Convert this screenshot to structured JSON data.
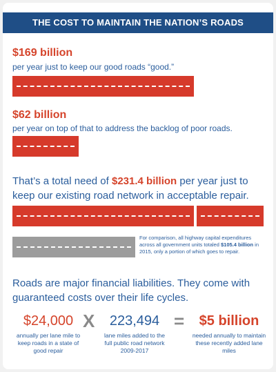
{
  "header": {
    "title": "THE COST TO MAINTAIN THE NATION’S ROADS"
  },
  "sections": [
    {
      "amount": "$169 billion",
      "description": "per year just to keep our good roads “good.”"
    },
    {
      "amount": "$62 billion",
      "description": "per year on top of that to address the backlog of poor roads."
    }
  ],
  "total": {
    "prefix": "That’s a total need of ",
    "amount": "$231.4 billion",
    "suffix": " per year just to keep our existing road network in acceptable repair."
  },
  "note": {
    "prefix": "For comparison, all highway capital expenditures across all government units totaled ",
    "amount": "$105.4 billion",
    "suffix": " in 2015, only a portion of which goes to repair."
  },
  "liabilities": "Roads are major financial liabilities. They come with guaranteed costs over their life cycles.",
  "equation": {
    "terms": [
      {
        "value": "$24,000",
        "caption": "annually per lane mile to keep roads in a state of good repair"
      },
      {
        "value": "223,494",
        "caption": "lane miles added to the full public road network 2009-2017"
      },
      {
        "value": "$5 billion",
        "caption": "needed annually to maintain these recently added lane miles"
      }
    ],
    "operators": [
      "X",
      "="
    ]
  }
}
